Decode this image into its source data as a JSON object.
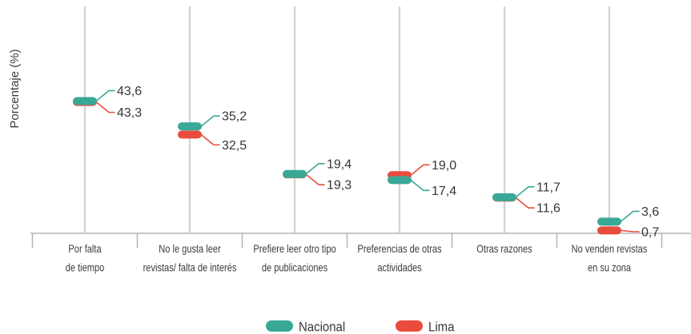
{
  "chart_data": {
    "type": "scatter",
    "categories": [
      [
        "Por falta",
        "de tiempo"
      ],
      [
        "No le gusta leer",
        "revistas/ falta de interés"
      ],
      [
        "Prefiere leer otro tipo",
        "de publicaciones"
      ],
      [
        "Preferencias de otras",
        "actividades"
      ],
      [
        "Otras razones"
      ],
      [
        "No venden revistas",
        "en su zona"
      ]
    ],
    "series": [
      {
        "name": "Nacional",
        "color": "#3aa896",
        "values": [
          43.6,
          35.2,
          19.4,
          17.4,
          11.7,
          3.6
        ],
        "labels": [
          "43,6",
          "35,2",
          "19,4",
          "17,4",
          "11,7",
          "3,6"
        ]
      },
      {
        "name": "Lima",
        "color": "#e84c3d",
        "values": [
          43.3,
          32.5,
          19.3,
          19.0,
          11.6,
          0.7
        ],
        "labels": [
          "43,3",
          "32,5",
          "19,3",
          "19,0",
          "11,6",
          "0,7"
        ]
      }
    ],
    "ylabel": "Porcentaje (%)",
    "ylim": [
      0,
      75
    ],
    "grid": true,
    "legend": "bottom"
  }
}
